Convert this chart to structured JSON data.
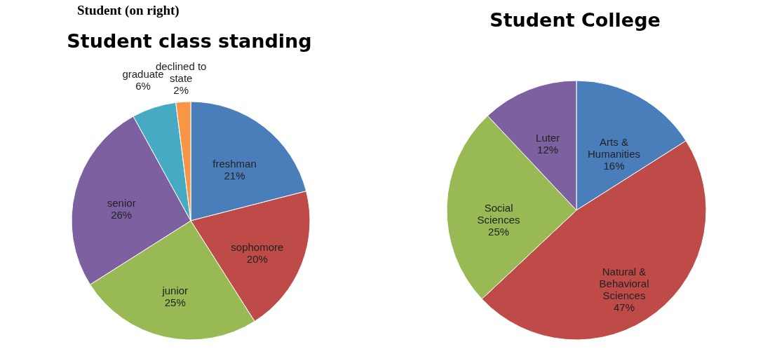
{
  "chart_data": [
    {
      "type": "pie",
      "title": "Student class standing",
      "annotations": [
        "Student (on right)"
      ],
      "categories": [
        "freshman",
        "sophomore",
        "junior",
        "senior",
        "graduate",
        "declined to state"
      ],
      "values": [
        21,
        20,
        25,
        26,
        6,
        2
      ],
      "colors": [
        "#4a7ebb",
        "#be4b48",
        "#98b954",
        "#7d60a0",
        "#46aac5",
        "#f79646"
      ],
      "value_labels": [
        "21%",
        "20%",
        "25%",
        "26%",
        "6%",
        "2%"
      ],
      "legend": false
    },
    {
      "type": "pie",
      "title": "Student College",
      "categories": [
        "Arts & Humanities",
        "Natural & Behavioral Sciences",
        "Social Sciences",
        "Luter"
      ],
      "values": [
        16,
        47,
        25,
        12
      ],
      "colors": [
        "#4a7ebb",
        "#be4b48",
        "#98b954",
        "#7d60a0"
      ],
      "value_labels": [
        "16%",
        "47%",
        "25%",
        "12%"
      ],
      "legend": false
    }
  ]
}
